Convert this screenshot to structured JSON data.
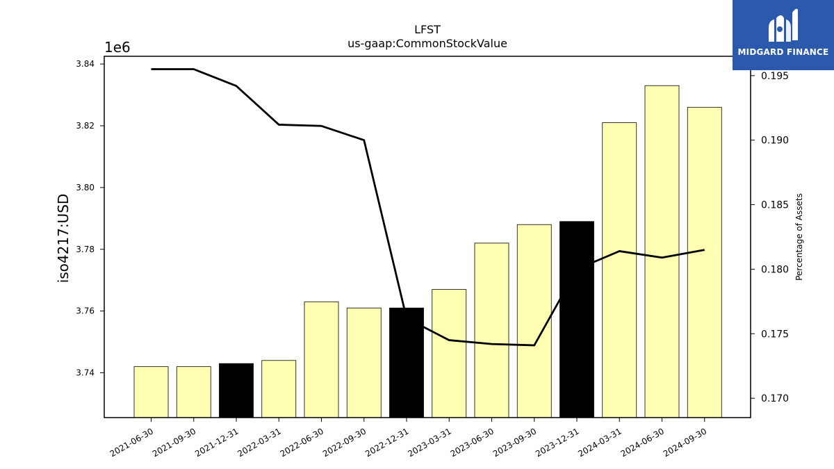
{
  "chart_data": {
    "type": "bar",
    "title": "LFST",
    "subtitle": "us-gaap:CommonStockValue",
    "ylabel": "iso4217:USD",
    "y2label": "Percentage of Assets",
    "offset_text": "1e6",
    "categories": [
      "2021-06-30",
      "2021-09-30",
      "2021-12-31",
      "2022-03-31",
      "2022-06-30",
      "2022-09-30",
      "2022-12-31",
      "2023-03-31",
      "2023-06-30",
      "2023-09-30",
      "2023-12-31",
      "2024-03-31",
      "2024-06-30",
      "2024-09-30"
    ],
    "values": [
      3.742,
      3.742,
      3.743,
      3.744,
      3.763,
      3.761,
      3.761,
      3.767,
      3.782,
      3.788,
      3.789,
      3.821,
      3.833,
      3.826
    ],
    "highlight": [
      false,
      false,
      true,
      false,
      false,
      false,
      true,
      false,
      false,
      false,
      true,
      false,
      false,
      false
    ],
    "line_values": [
      0.1955,
      0.1955,
      0.1942,
      0.1912,
      0.1911,
      0.19,
      0.1762,
      0.1745,
      0.1742,
      0.1741,
      0.18,
      0.1814,
      0.1809,
      0.1815
    ],
    "ylim": [
      3.7255,
      3.8425
    ],
    "y2lim": [
      0.1685,
      0.1965
    ],
    "yticks": [
      "3.74",
      "3.76",
      "3.78",
      "3.80",
      "3.82",
      "3.84"
    ],
    "y2ticks": [
      "0.170",
      "0.175",
      "0.180",
      "0.185",
      "0.190",
      "0.195"
    ],
    "colors": {
      "bar": "#ffffb3",
      "highlight": "#000000",
      "line": "#000000",
      "logo_bg": "#2b5aad"
    }
  },
  "logo": {
    "text": "MIDGARD FINANCE",
    "icon": "midgard-logo-icon"
  }
}
